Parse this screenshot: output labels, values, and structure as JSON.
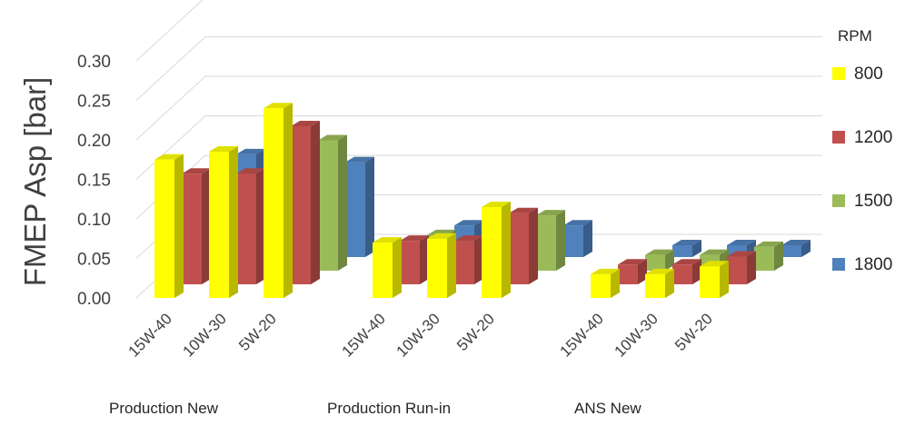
{
  "chart_data": {
    "type": "bar",
    "style": "3d-clustered",
    "ylabel": "FMEP Asp [bar]",
    "ylim": [
      0,
      0.3
    ],
    "yticks": [
      "0.00",
      "0.05",
      "0.10",
      "0.15",
      "0.20",
      "0.25",
      "0.30"
    ],
    "grid": true,
    "legend": {
      "title": "RPM",
      "position": "right"
    },
    "groups": [
      {
        "label": "Production New",
        "categories": [
          "15W-40",
          "10W-30",
          "5W-20"
        ]
      },
      {
        "label": "Production Run-in",
        "categories": [
          "15W-40",
          "10W-30",
          "5W-20"
        ]
      },
      {
        "label": "ANS New",
        "categories": [
          "15W-40",
          "10W-30",
          "5W-20"
        ]
      }
    ],
    "series": [
      {
        "name": "800",
        "color": "#FFFF00",
        "values": [
          0.175,
          0.185,
          0.24,
          0.07,
          0.075,
          0.115,
          0.03,
          0.03,
          0.04
        ]
      },
      {
        "name": "1200",
        "color": "#C0504D",
        "values": [
          0.14,
          0.14,
          0.2,
          0.055,
          0.055,
          0.09,
          0.025,
          0.025,
          0.035
        ]
      },
      {
        "name": "1500",
        "color": "#9BBB59",
        "values": [
          0.11,
          0.11,
          0.165,
          0.045,
          0.04,
          0.07,
          0.02,
          0.02,
          0.03
        ]
      },
      {
        "name": "1800",
        "color": "#4F81BD",
        "values": [
          0.13,
          0.13,
          0.12,
          0.04,
          0.04,
          0.04,
          0.015,
          0.015,
          0.015
        ]
      }
    ]
  }
}
